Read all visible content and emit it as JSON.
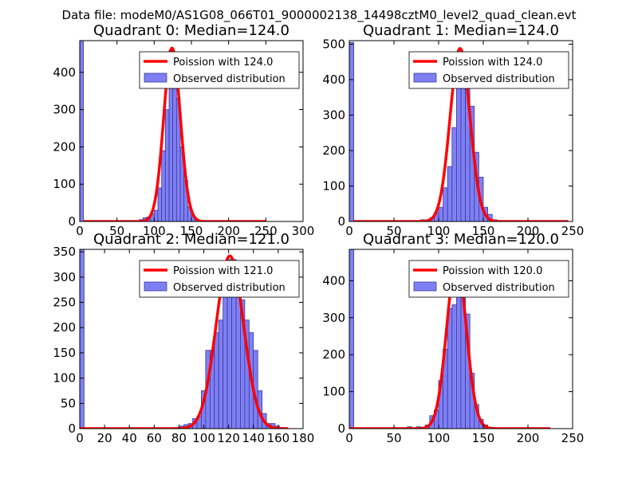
{
  "figure": {
    "suptitle": "Data file: modeM0/AS1G08_066T01_9000002138_14498cztM0_level2_quad_clean.evt"
  },
  "colors": {
    "bar_fill": "#7f7ff5",
    "bar_edge": "#3a3a9a",
    "fit_line": "#ff0000",
    "axes": "#000000"
  },
  "chart_data": [
    {
      "type": "bar",
      "title": "Quadrant 0: Median=124.0",
      "xlim": [
        0,
        300
      ],
      "ylim": [
        0,
        485
      ],
      "xticks": [
        0,
        50,
        100,
        150,
        200,
        250,
        300
      ],
      "yticks": [
        0,
        100,
        200,
        300,
        400
      ],
      "bin_width": 5,
      "bars": [
        {
          "x": 0,
          "h": 485
        },
        {
          "x": 80,
          "h": 5
        },
        {
          "x": 85,
          "h": 10
        },
        {
          "x": 90,
          "h": 12
        },
        {
          "x": 95,
          "h": 20
        },
        {
          "x": 100,
          "h": 30
        },
        {
          "x": 105,
          "h": 90
        },
        {
          "x": 110,
          "h": 190
        },
        {
          "x": 115,
          "h": 300
        },
        {
          "x": 120,
          "h": 460
        },
        {
          "x": 125,
          "h": 440
        },
        {
          "x": 130,
          "h": 330
        },
        {
          "x": 135,
          "h": 200
        },
        {
          "x": 140,
          "h": 110
        },
        {
          "x": 145,
          "h": 40
        },
        {
          "x": 150,
          "h": 15
        },
        {
          "x": 155,
          "h": 5
        }
      ],
      "fit": {
        "name": "Poission with 124.0",
        "mu": 124.0,
        "peak": 465,
        "xmin": 5,
        "xmax": 250
      },
      "legend": {
        "line": "Poission with 124.0",
        "bars": "Observed distribution"
      }
    },
    {
      "type": "bar",
      "title": "Quadrant 1: Median=124.0",
      "xlim": [
        0,
        250
      ],
      "ylim": [
        0,
        510
      ],
      "xticks": [
        0,
        50,
        100,
        150,
        200,
        250
      ],
      "yticks": [
        0,
        100,
        200,
        300,
        400,
        500
      ],
      "bin_width": 5,
      "bars": [
        {
          "x": 0,
          "h": 505
        },
        {
          "x": 80,
          "h": 5
        },
        {
          "x": 90,
          "h": 10
        },
        {
          "x": 95,
          "h": 25
        },
        {
          "x": 100,
          "h": 40
        },
        {
          "x": 105,
          "h": 95
        },
        {
          "x": 110,
          "h": 155
        },
        {
          "x": 115,
          "h": 265
        },
        {
          "x": 120,
          "h": 385
        },
        {
          "x": 125,
          "h": 455
        },
        {
          "x": 130,
          "h": 435
        },
        {
          "x": 135,
          "h": 325
        },
        {
          "x": 140,
          "h": 195
        },
        {
          "x": 145,
          "h": 125
        },
        {
          "x": 150,
          "h": 40
        },
        {
          "x": 155,
          "h": 20
        },
        {
          "x": 160,
          "h": 5
        }
      ],
      "fit": {
        "name": "Poission with 124.0",
        "mu": 124.0,
        "peak": 488,
        "xmin": 5,
        "xmax": 245
      },
      "legend": {
        "line": "Poission with 124.0",
        "bars": "Observed distribution"
      }
    },
    {
      "type": "bar",
      "title": "Quadrant 2: Median=121.0",
      "xlim": [
        0,
        180
      ],
      "ylim": [
        0,
        355
      ],
      "xticks": [
        0,
        20,
        40,
        60,
        80,
        100,
        120,
        140,
        160,
        180
      ],
      "yticks": [
        0,
        50,
        100,
        150,
        200,
        250,
        300,
        350
      ],
      "bin_width": 3.5,
      "bars": [
        {
          "x": 0,
          "h": 355
        },
        {
          "x": 80,
          "h": 5
        },
        {
          "x": 84,
          "h": 8
        },
        {
          "x": 87.5,
          "h": 10
        },
        {
          "x": 91,
          "h": 20
        },
        {
          "x": 94.5,
          "h": 25
        },
        {
          "x": 98,
          "h": 75
        },
        {
          "x": 101.5,
          "h": 155
        },
        {
          "x": 105,
          "h": 155
        },
        {
          "x": 108.5,
          "h": 190
        },
        {
          "x": 112,
          "h": 215
        },
        {
          "x": 115.5,
          "h": 290
        },
        {
          "x": 119,
          "h": 335
        },
        {
          "x": 122.5,
          "h": 335
        },
        {
          "x": 126,
          "h": 300
        },
        {
          "x": 129.5,
          "h": 255
        },
        {
          "x": 133,
          "h": 215
        },
        {
          "x": 136.5,
          "h": 190
        },
        {
          "x": 140,
          "h": 155
        },
        {
          "x": 143.5,
          "h": 75
        },
        {
          "x": 147,
          "h": 30
        },
        {
          "x": 150.5,
          "h": 10
        },
        {
          "x": 154,
          "h": 10
        },
        {
          "x": 157.5,
          "h": 5
        }
      ],
      "fit": {
        "name": "Poission with 121.0",
        "mu": 121.0,
        "peak": 342,
        "xmin": 0,
        "xmax": 168
      },
      "legend": {
        "line": "Poission with 121.0",
        "bars": "Observed distribution"
      }
    },
    {
      "type": "bar",
      "title": "Quadrant 3: Median=120.0",
      "xlim": [
        0,
        250
      ],
      "ylim": [
        0,
        485
      ],
      "xticks": [
        0,
        50,
        100,
        150,
        200,
        250
      ],
      "yticks": [
        0,
        100,
        200,
        300,
        400
      ],
      "bin_width": 5,
      "bars": [
        {
          "x": 0,
          "h": 485
        },
        {
          "x": 65,
          "h": 5
        },
        {
          "x": 75,
          "h": 5
        },
        {
          "x": 85,
          "h": 10
        },
        {
          "x": 90,
          "h": 35
        },
        {
          "x": 95,
          "h": 50
        },
        {
          "x": 100,
          "h": 130
        },
        {
          "x": 105,
          "h": 215
        },
        {
          "x": 110,
          "h": 325
        },
        {
          "x": 115,
          "h": 335
        },
        {
          "x": 120,
          "h": 445
        },
        {
          "x": 125,
          "h": 385
        },
        {
          "x": 130,
          "h": 310
        },
        {
          "x": 135,
          "h": 150
        },
        {
          "x": 140,
          "h": 65
        },
        {
          "x": 145,
          "h": 25
        },
        {
          "x": 150,
          "h": 10
        }
      ],
      "fit": {
        "name": "Poission with 120.0",
        "mu": 120.0,
        "peak": 452,
        "xmin": 0,
        "xmax": 225
      },
      "legend": {
        "line": "Poission with 120.0",
        "bars": "Observed distribution"
      }
    }
  ]
}
